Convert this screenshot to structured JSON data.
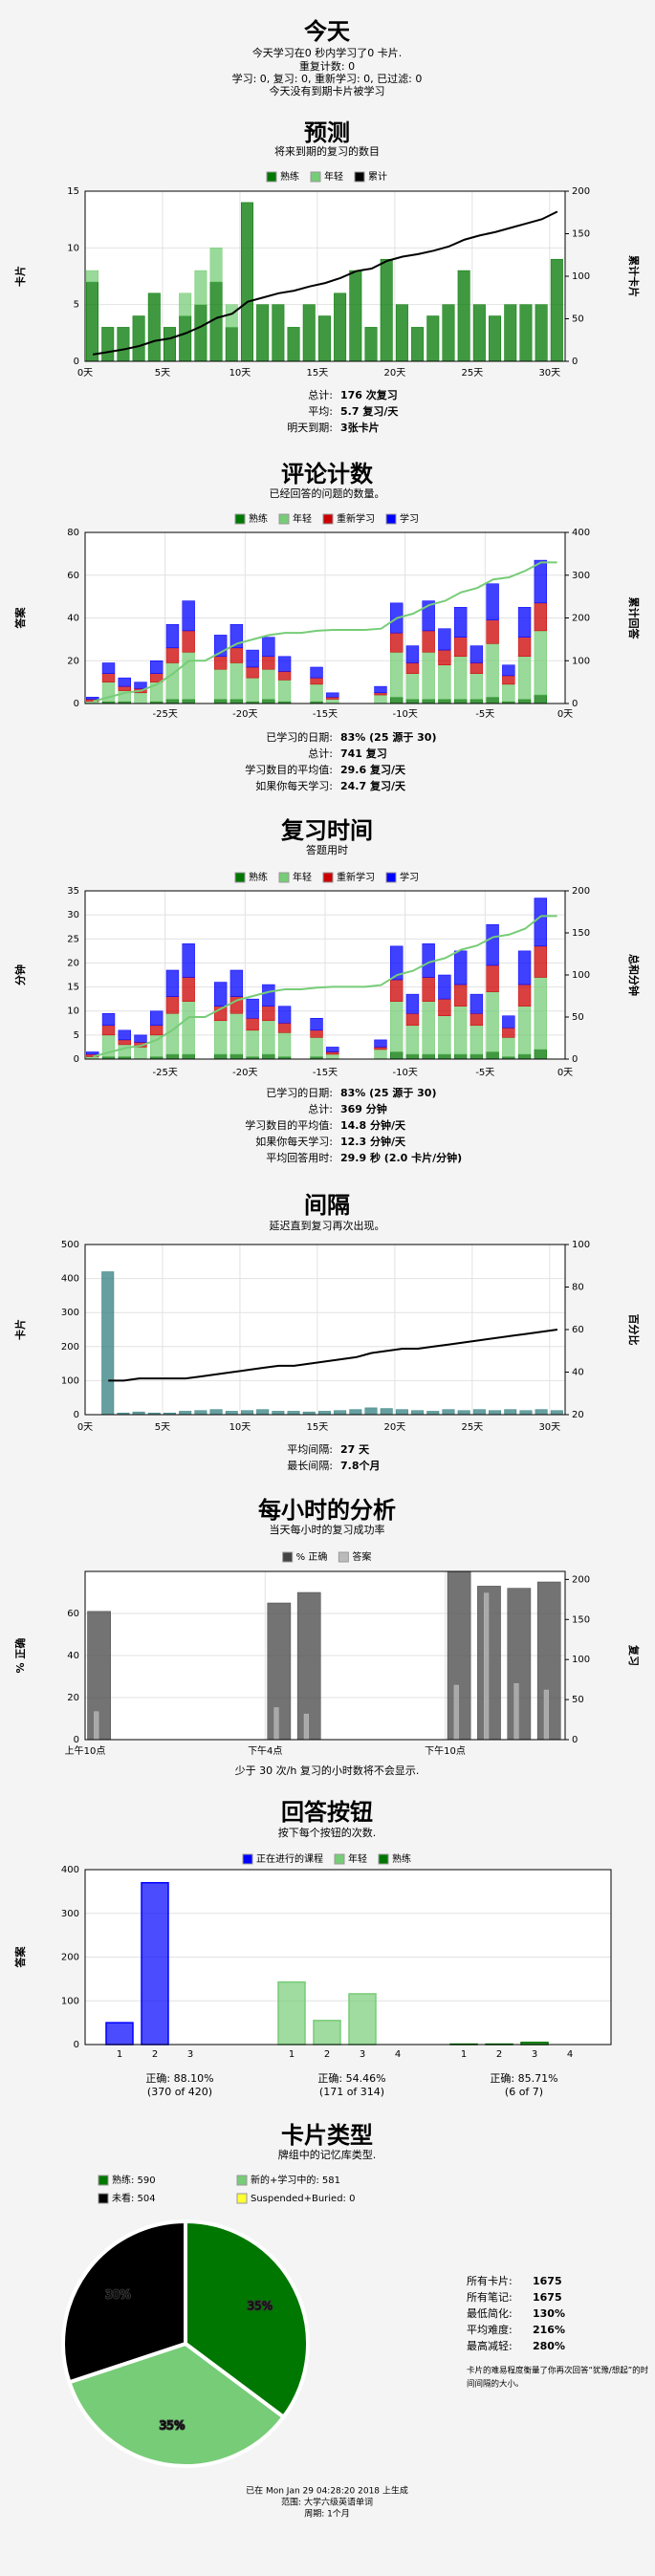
{
  "today": {
    "title": "今天",
    "lines": [
      "今天学习在0 秒内学习了0 卡片.",
      "重复计数: 0",
      "学习: 0, 复习: 0, 重新学习: 0, 已过滤: 0",
      "今天没有到期卡片被学习"
    ]
  },
  "chart_data": [
    {
      "type": "bar",
      "title": "预测",
      "subtitle": "将来到期的复习的数目",
      "ylabel": "卡片",
      "y2label": "累计卡片",
      "stacked": true,
      "grid": true,
      "x": [
        0,
        1,
        2,
        3,
        4,
        5,
        6,
        7,
        8,
        9,
        10,
        11,
        12,
        13,
        14,
        15,
        16,
        17,
        18,
        19,
        20,
        21,
        22,
        23,
        24,
        25,
        26,
        27,
        28,
        29,
        30
      ],
      "xlim": [
        0,
        31
      ],
      "xticks": [
        {
          "value": 0,
          "label": "0天"
        },
        {
          "value": 5,
          "label": "5天"
        },
        {
          "value": 10,
          "label": "10天"
        },
        {
          "value": 15,
          "label": "15天"
        },
        {
          "value": 20,
          "label": "20天"
        },
        {
          "value": 25,
          "label": "25天"
        },
        {
          "value": 30,
          "label": "30天"
        }
      ],
      "ylim": [
        0,
        15
      ],
      "yticks": [
        0,
        5,
        10,
        15
      ],
      "y2lim": [
        0,
        200
      ],
      "y2ticks": [
        0,
        50,
        100,
        150,
        200
      ],
      "series": [
        {
          "name": "熟练",
          "color": "#007700",
          "values": [
            7,
            3,
            3,
            4,
            6,
            3,
            4,
            5,
            7,
            3,
            14,
            5,
            5,
            3,
            5,
            4,
            6,
            8,
            3,
            9,
            5,
            3,
            4,
            5,
            8,
            5,
            4,
            5,
            5,
            5,
            9
          ]
        },
        {
          "name": "年轻",
          "color": "#77cc77",
          "values": [
            1,
            0,
            0,
            0,
            0,
            0,
            2,
            3,
            3,
            2,
            0,
            0,
            0,
            0,
            0,
            0,
            0,
            0,
            0,
            0,
            0,
            0,
            0,
            0,
            0,
            0,
            0,
            0,
            0,
            0,
            0
          ]
        },
        {
          "name": "累计",
          "color": "#000000",
          "type": "line",
          "axis": "y2",
          "values": [
            8,
            11,
            14,
            18,
            24,
            27,
            33,
            41,
            51,
            56,
            70,
            75,
            80,
            83,
            88,
            92,
            98,
            106,
            109,
            118,
            123,
            126,
            130,
            135,
            143,
            148,
            152,
            157,
            162,
            167,
            176
          ]
        }
      ],
      "stats": [
        {
          "label": "总计:",
          "value": "176 次复习"
        },
        {
          "label": "平均:",
          "value": "5.7 复习/天"
        },
        {
          "label": "明天到期:",
          "value": "3张卡片"
        }
      ]
    },
    {
      "type": "bar",
      "title": "评论计数",
      "subtitle": "已经回答的问题的数量。",
      "ylabel": "答案",
      "y2label": "累计回答",
      "stacked": true,
      "grid": true,
      "x": [
        -30,
        -29,
        -28,
        -27,
        -26,
        -25,
        -24,
        -23,
        -22,
        -21,
        -20,
        -19,
        -18,
        -17,
        -16,
        -15,
        -14,
        -13,
        -12,
        -11,
        -10,
        -9,
        -8,
        -7,
        -6,
        -5,
        -4,
        -3,
        -2,
        -1
      ],
      "xlim": [
        -30,
        0
      ],
      "xticks": [
        {
          "value": -25,
          "label": "-25天"
        },
        {
          "value": -20,
          "label": "-20天"
        },
        {
          "value": -15,
          "label": "-15天"
        },
        {
          "value": -10,
          "label": "-10天"
        },
        {
          "value": -5,
          "label": "-5天"
        },
        {
          "value": 0,
          "label": "0天"
        }
      ],
      "ylim": [
        0,
        80
      ],
      "yticks": [
        0,
        20,
        40,
        60,
        80
      ],
      "y2lim": [
        0,
        400
      ],
      "y2ticks": [
        0,
        100,
        200,
        300,
        400
      ],
      "series": [
        {
          "name": "熟练",
          "color": "#007700",
          "values": [
            0,
            1,
            1,
            0,
            1,
            2,
            2,
            0,
            2,
            2,
            1,
            2,
            1,
            0,
            1,
            0,
            0,
            0,
            0,
            3,
            2,
            2,
            2,
            2,
            2,
            3,
            1,
            2,
            4,
            0
          ]
        },
        {
          "name": "年轻",
          "color": "#77cc77",
          "values": [
            1,
            9,
            5,
            5,
            9,
            17,
            22,
            0,
            14,
            17,
            11,
            14,
            10,
            0,
            8,
            2,
            0,
            0,
            4,
            21,
            12,
            22,
            16,
            20,
            12,
            25,
            8,
            20,
            30,
            0
          ]
        },
        {
          "name": "重新学习",
          "color": "#cc0000",
          "values": [
            1,
            4,
            2,
            2,
            4,
            7,
            10,
            0,
            6,
            7,
            5,
            6,
            4,
            0,
            3,
            1,
            0,
            0,
            1,
            9,
            5,
            10,
            7,
            9,
            5,
            11,
            4,
            9,
            13,
            0
          ]
        },
        {
          "name": "学习",
          "color": "#0000ff",
          "values": [
            1,
            5,
            4,
            3,
            6,
            11,
            14,
            0,
            10,
            11,
            8,
            9,
            7,
            0,
            5,
            2,
            0,
            0,
            3,
            14,
            8,
            14,
            10,
            14,
            8,
            17,
            5,
            14,
            20,
            0
          ]
        },
        {
          "color": "#77cc77",
          "type": "line",
          "axis": "y2",
          "values": [
            5,
            15,
            25,
            30,
            45,
            70,
            100,
            100,
            120,
            140,
            150,
            160,
            165,
            165,
            170,
            172,
            172,
            172,
            175,
            200,
            210,
            230,
            240,
            260,
            270,
            290,
            295,
            310,
            330,
            330
          ]
        }
      ],
      "stats": [
        {
          "label": "已学习的日期:",
          "value": "83% (25 源于 30)"
        },
        {
          "label": "总计:",
          "value": "741 复习"
        },
        {
          "label": "学习数目的平均值:",
          "value": "29.6 复习/天"
        },
        {
          "label": "如果你每天学习:",
          "value": "24.7 复习/天"
        }
      ]
    },
    {
      "type": "bar",
      "title": "复习时间",
      "subtitle": "答题用时",
      "ylabel": "分钟",
      "y2label": "总和分钟",
      "stacked": true,
      "grid": true,
      "x": [
        -30,
        -29,
        -28,
        -27,
        -26,
        -25,
        -24,
        -23,
        -22,
        -21,
        -20,
        -19,
        -18,
        -17,
        -16,
        -15,
        -14,
        -13,
        -12,
        -11,
        -10,
        -9,
        -8,
        -7,
        -6,
        -5,
        -4,
        -3,
        -2,
        -1
      ],
      "xlim": [
        -30,
        0
      ],
      "xticks": [
        {
          "value": -25,
          "label": "-25天"
        },
        {
          "value": -20,
          "label": "-20天"
        },
        {
          "value": -15,
          "label": "-15天"
        },
        {
          "value": -10,
          "label": "-10天"
        },
        {
          "value": -5,
          "label": "-5天"
        },
        {
          "value": 0,
          "label": "0天"
        }
      ],
      "ylim": [
        0,
        35
      ],
      "yticks": [
        0,
        5,
        10,
        15,
        20,
        25,
        30,
        35
      ],
      "y2lim": [
        0,
        200
      ],
      "y2ticks": [
        0,
        50,
        100,
        150,
        200
      ],
      "series": [
        {
          "name": "熟练",
          "color": "#007700",
          "values": [
            0,
            0.5,
            0.5,
            0,
            0.5,
            1,
            1,
            0,
            1,
            1,
            0.5,
            1,
            0.5,
            0,
            0.5,
            0,
            0,
            0,
            0,
            1.5,
            1,
            1,
            1,
            1,
            1,
            1.5,
            0.5,
            1,
            2,
            0
          ]
        },
        {
          "name": "年轻",
          "color": "#77cc77",
          "values": [
            0.5,
            4.5,
            2.5,
            2.5,
            4.5,
            8.5,
            11,
            0,
            7,
            8.5,
            5.5,
            7,
            5,
            0,
            4,
            1,
            0,
            0,
            2,
            10.5,
            6,
            11,
            8,
            10,
            6,
            12.5,
            4,
            10,
            15,
            0
          ]
        },
        {
          "name": "重新学习",
          "color": "#cc0000",
          "values": [
            0.5,
            2,
            1,
            1,
            2,
            3.5,
            5,
            0,
            3,
            3.5,
            2.5,
            3,
            2,
            0,
            1.5,
            0.5,
            0,
            0,
            0.5,
            4.5,
            2.5,
            5,
            3.5,
            4.5,
            2.5,
            5.5,
            2,
            4.5,
            6.5,
            0
          ]
        },
        {
          "name": "学习",
          "color": "#0000ff",
          "values": [
            0.5,
            2.5,
            2,
            1.5,
            3,
            5.5,
            7,
            0,
            5,
            5.5,
            4,
            4.5,
            3.5,
            0,
            2.5,
            1,
            0,
            0,
            1.5,
            7,
            4,
            7,
            5,
            7,
            4,
            8.5,
            2.5,
            7,
            10,
            0
          ]
        },
        {
          "color": "#77cc77",
          "type": "line",
          "axis": "y2",
          "values": [
            3,
            8,
            13,
            16,
            23,
            35,
            50,
            50,
            60,
            70,
            75,
            80,
            83,
            83,
            85,
            86,
            86,
            86,
            88,
            100,
            105,
            115,
            120,
            130,
            135,
            145,
            148,
            155,
            170,
            170
          ]
        }
      ],
      "stats": [
        {
          "label": "已学习的日期:",
          "value": "83% (25 源于 30)"
        },
        {
          "label": "总计:",
          "value": "369 分钟"
        },
        {
          "label": "学习数目的平均值:",
          "value": "14.8 分钟/天"
        },
        {
          "label": "如果你每天学习:",
          "value": "12.3 分钟/天"
        },
        {
          "label": "平均回答用时:",
          "value": "29.9 秒 (2.0 卡片/分钟)"
        }
      ]
    },
    {
      "type": "bar",
      "title": "间隔",
      "subtitle": "延迟直到复习再次出现。",
      "ylabel": "卡片",
      "y2label": "百分比",
      "stacked": false,
      "grid": true,
      "x": [
        1,
        2,
        3,
        4,
        5,
        6,
        7,
        8,
        9,
        10,
        11,
        12,
        13,
        14,
        15,
        16,
        17,
        18,
        19,
        20,
        21,
        22,
        23,
        24,
        25,
        26,
        27,
        28,
        29,
        30
      ],
      "xlim": [
        0,
        31
      ],
      "xticks": [
        {
          "value": 0,
          "label": "0天"
        },
        {
          "value": 5,
          "label": "5天"
        },
        {
          "value": 10,
          "label": "10天"
        },
        {
          "value": 15,
          "label": "15天"
        },
        {
          "value": 20,
          "label": "20天"
        },
        {
          "value": 25,
          "label": "25天"
        },
        {
          "value": 30,
          "label": "30天"
        }
      ],
      "ylim": [
        0,
        500
      ],
      "yticks": [
        0,
        100,
        200,
        300,
        400,
        500
      ],
      "y2lim": [
        20,
        100
      ],
      "y2ticks": [
        20,
        40,
        60,
        80,
        100
      ],
      "series": [
        {
          "color": "#337f7f",
          "values": [
            420,
            5,
            8,
            5,
            5,
            10,
            12,
            15,
            10,
            12,
            15,
            10,
            10,
            8,
            10,
            12,
            15,
            20,
            18,
            15,
            12,
            10,
            15,
            12,
            15,
            12,
            15,
            12,
            15,
            12
          ]
        },
        {
          "color": "#000000",
          "type": "line",
          "axis": "y2",
          "values": [
            36,
            36,
            37,
            37,
            37,
            37,
            38,
            39,
            40,
            41,
            42,
            43,
            43,
            44,
            45,
            46,
            47,
            49,
            50,
            51,
            51,
            52,
            53,
            54,
            55,
            56,
            57,
            58,
            59,
            60
          ]
        }
      ],
      "stats": [
        {
          "label": "平均间隔:",
          "value": "27 天"
        },
        {
          "label": "最长间隔:",
          "value": "7.8个月"
        }
      ]
    },
    {
      "type": "bar",
      "title": "每小时的分析",
      "subtitle": "当天每小时的复习成功率",
      "ylabel": "% 正确",
      "y2label": "复习",
      "stacked": false,
      "grid": true,
      "x": [
        10,
        16,
        17,
        22,
        23,
        24,
        25
      ],
      "xlim": [
        10,
        26
      ],
      "xticks": [
        {
          "value": 10,
          "label": "上午10点"
        },
        {
          "value": 16,
          "label": "下午4点"
        },
        {
          "value": 22,
          "label": "下午10点"
        }
      ],
      "ylim": [
        0,
        80
      ],
      "yticks": [
        0,
        20,
        40,
        60
      ],
      "y2lim": [
        0,
        210
      ],
      "y2ticks": [
        0,
        50,
        100,
        150,
        200
      ],
      "series": [
        {
          "name": "% 正确",
          "color": "#444444",
          "values": [
            61,
            65,
            70,
            80,
            73,
            72,
            75
          ]
        },
        {
          "name": "答案",
          "color": "#bbbbbb",
          "axis": "y2",
          "values": [
            35,
            40,
            32,
            68,
            183,
            70,
            62
          ]
        }
      ],
      "note": "少于 30 次/h 复习的小时数将不会显示."
    },
    {
      "type": "grouped_bar",
      "title": "回答按钮",
      "subtitle": "按下每个按钮的次数.",
      "ylabel": "答案",
      "grid": true,
      "ylim": [
        0,
        400
      ],
      "yticks": [
        0,
        100,
        200,
        300,
        400
      ],
      "groups": [
        {
          "name": "正在进行的课程",
          "color": "#0000ff",
          "categories": [
            "1",
            "2",
            "3"
          ],
          "values": [
            50,
            370,
            0
          ],
          "stat": "正确: 88.10%",
          "detail": "(370 of 420)"
        },
        {
          "name": "年轻",
          "color": "#77cc77",
          "categories": [
            "1",
            "2",
            "3",
            "4"
          ],
          "values": [
            143,
            55,
            116,
            0
          ],
          "stat": "正确: 54.46%",
          "detail": "(171 of 314)"
        },
        {
          "name": "熟练",
          "color": "#007700",
          "categories": [
            "1",
            "2",
            "3",
            "4"
          ],
          "values": [
            1,
            1,
            5,
            0
          ],
          "stat": "正确: 85.71%",
          "detail": "(6 of 7)"
        }
      ]
    },
    {
      "type": "pie",
      "title": "卡片类型",
      "subtitle": "牌组中的记忆库类型.",
      "categories": [
        "熟练: 590",
        "新的+学习中的: 581",
        "未看: 504",
        "Suspended+Buried: 0"
      ],
      "values": [
        590,
        581,
        504,
        0
      ],
      "value_labels": [
        "35%",
        "35%",
        "30%",
        null
      ],
      "colors": [
        "#007700",
        "#77cc77",
        "#000000",
        "#ffff33"
      ],
      "stats": [
        {
          "label": "所有卡片:",
          "value": "1675"
        },
        {
          "label": "所有笔记:",
          "value": "1675"
        },
        {
          "label": "最低简化:",
          "value": "130%"
        },
        {
          "label": "平均难度:",
          "value": "216%"
        },
        {
          "label": "最高减轻:",
          "value": "280%"
        }
      ],
      "note": [
        "卡片的难易程度衡量了你再次回答“犹豫/想起”的时",
        "间间隔的大小。"
      ]
    }
  ],
  "footer": [
    "已在 Mon Jan 29 04:28:20 2018 上生成",
    "范围: 大学六级英语单词",
    "周期: 1个月"
  ]
}
